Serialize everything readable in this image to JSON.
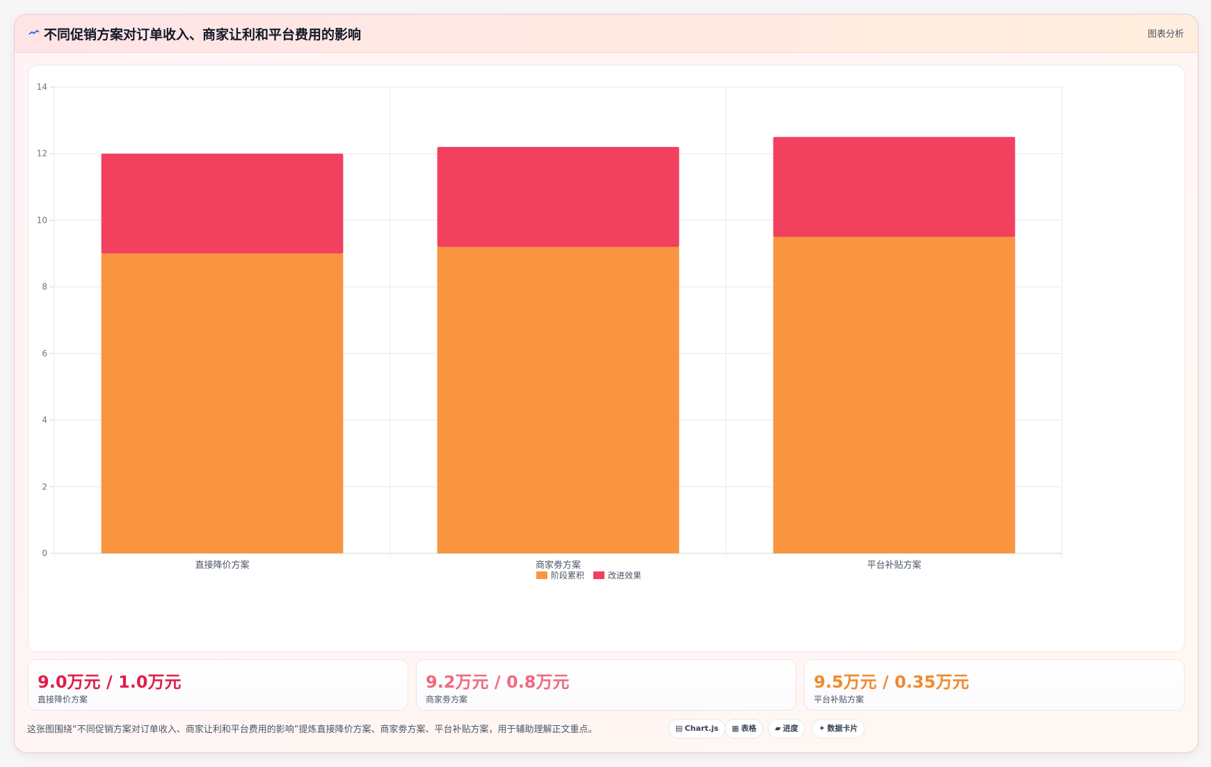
{
  "header": {
    "title": "不同促销方案对订单收入、商家让利和平台费用的影响",
    "badge": "图表分析",
    "icon": "line-chart-icon"
  },
  "chart_data": {
    "type": "bar",
    "stacked": true,
    "categories": [
      "直接降价方案",
      "商家劵方案",
      "平台补贴方案"
    ],
    "series": [
      {
        "name": "阶段累积",
        "values": [
          9.0,
          9.2,
          9.5
        ],
        "color": "#f9943f"
      },
      {
        "name": "改进效果",
        "values": [
          3.0,
          3.0,
          3.0
        ],
        "color": "#f2405f"
      }
    ],
    "ylim": [
      0,
      14
    ],
    "yticks": [
      0,
      2,
      4,
      6,
      8,
      10,
      12,
      14
    ],
    "grid": true,
    "legend": "bottom"
  },
  "kpis": [
    {
      "value": "9.0万元 / 1.0万元",
      "label": "直接降价方案",
      "color": "#e11d48"
    },
    {
      "value": "9.2万元 / 0.8万元",
      "label": "商家劵方案",
      "color": "#f26a7e"
    },
    {
      "value": "9.5万元 / 0.35万元",
      "label": "平台补贴方案",
      "color": "#f08a2c"
    }
  ],
  "footer": {
    "note": "这张图围绕“不同促销方案对订单收入、商家让利和平台费用的影响”提炼直接降价方案、商家劵方案、平台补贴方案，用于辅助理解正文重点。",
    "chips": [
      {
        "label": "Chart.js",
        "icon": "▤"
      },
      {
        "label": "表格",
        "icon": "▦"
      },
      {
        "label": "进度",
        "icon": "▰"
      },
      {
        "label": "数据卡片",
        "icon": "✦"
      }
    ]
  }
}
